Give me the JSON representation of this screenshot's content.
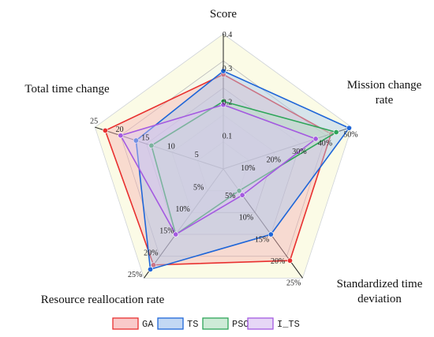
{
  "chart_data": {
    "type": "radar",
    "axes": [
      {
        "title": "Score",
        "title_lines": [
          "Score"
        ],
        "max": 0.4,
        "ticks": [
          "0.1",
          "0.2",
          "0.3",
          "0.4"
        ]
      },
      {
        "title": "Mission change rate",
        "title_lines": [
          "Mission change",
          "rate"
        ],
        "max": 50,
        "ticks": [
          "10%",
          "20%",
          "30%",
          "40%",
          "50%"
        ]
      },
      {
        "title": "Standardized time deviation",
        "title_lines": [
          "Standardized time",
          "deviation"
        ],
        "max": 25,
        "ticks": [
          "5%",
          "10%",
          "15%",
          "20%",
          "25%"
        ]
      },
      {
        "title": "Resource reallocation rate",
        "title_lines": [
          "Resource reallocation rate"
        ],
        "max": 25,
        "ticks": [
          "5%",
          "10%",
          "15%",
          "20%",
          "25%"
        ]
      },
      {
        "title": "Total time change",
        "title_lines": [
          "Total time change"
        ],
        "max": 25,
        "ticks": [
          "5",
          "10",
          "15",
          "20",
          "25"
        ]
      }
    ],
    "series": [
      {
        "name": "GA",
        "color": "#e8302f",
        "fill": "#f6b3b3",
        "values": [
          0.28,
          42,
          21,
          22,
          23
        ]
      },
      {
        "name": "TS",
        "color": "#1f66d8",
        "fill": "#a9c8f0",
        "values": [
          0.29,
          49,
          15,
          23,
          17
        ]
      },
      {
        "name": "PSO",
        "color": "#2ea559",
        "fill": "#b9e3c6",
        "values": [
          0.2,
          44,
          5,
          15,
          14
        ]
      },
      {
        "name": "I_TS",
        "color": "#a45ae0",
        "fill": "#dcc6f2",
        "values": [
          0.19,
          36,
          6,
          15,
          20
        ]
      }
    ],
    "legend_position": "bottom",
    "grid": true
  }
}
